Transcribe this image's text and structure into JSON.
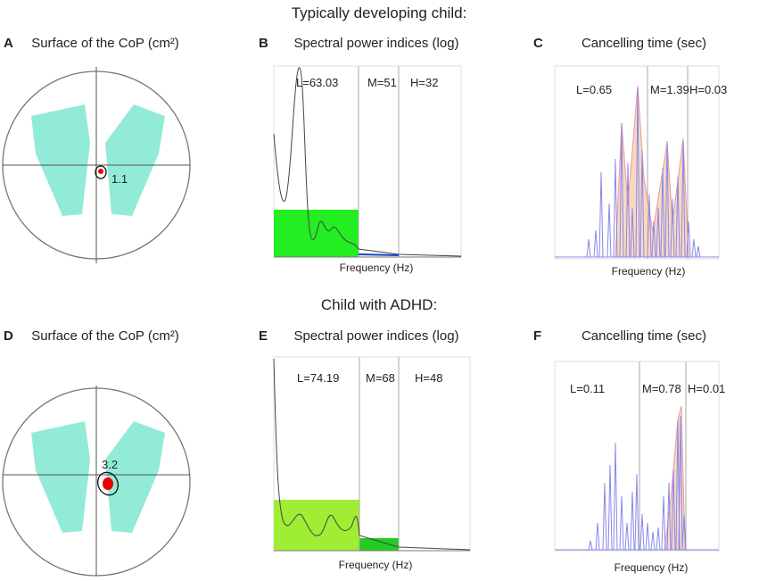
{
  "sections": [
    {
      "heading": "Typically developing child:",
      "panels": [
        {
          "letter": "A",
          "title": "Surface of the CoP (cm²)",
          "value": "1.1"
        },
        {
          "letter": "B",
          "title": "Spectral power indices (log)",
          "bands": [
            "L=63.03",
            "M=51",
            "H=32"
          ],
          "x_label": "Frequency (Hz)"
        },
        {
          "letter": "C",
          "title": "Cancelling time (sec)",
          "bands": [
            "L=0.65",
            "M=1.39",
            "H=0.03"
          ],
          "x_label": "Frequency (Hz)"
        }
      ]
    },
    {
      "heading": "Child with ADHD:",
      "panels": [
        {
          "letter": "D",
          "title": "Surface of the CoP (cm²)",
          "value": "3.2"
        },
        {
          "letter": "E",
          "title": "Spectral power indices (log)",
          "bands": [
            "L=74.19",
            "M=68",
            "H=48"
          ],
          "x_label": "Frequency (Hz)"
        },
        {
          "letter": "F",
          "title": "Cancelling time (sec)",
          "bands": [
            "L=0.11",
            "M=0.78",
            "H=0.01"
          ],
          "x_label": "Frequency (Hz)"
        }
      ]
    }
  ]
}
